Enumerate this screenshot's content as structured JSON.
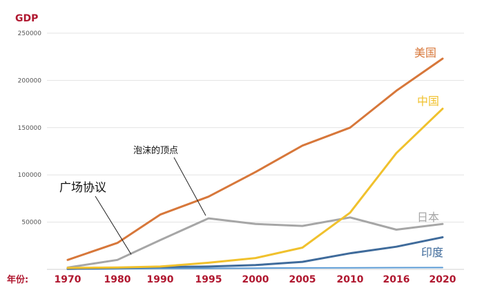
{
  "chart_data": {
    "type": "line",
    "ylabel": "GDP",
    "xlabel": "年份:",
    "ylim": [
      0,
      250000
    ],
    "yticks": [
      "250000",
      "200000",
      "150000",
      "100000",
      "50000"
    ],
    "categories": [
      "1970",
      "1980",
      "1990",
      "1995",
      "2000",
      "2005",
      "2010",
      "2016",
      "2020"
    ],
    "grid": true,
    "series": [
      {
        "name": "美国",
        "color": "#d7773a",
        "values": [
          10000,
          28000,
          58000,
          77000,
          103000,
          131000,
          150000,
          189000,
          223000
        ]
      },
      {
        "name": "中国",
        "color": "#f0c12d",
        "values": [
          1500,
          2000,
          3000,
          7000,
          12000,
          23000,
          60000,
          123000,
          170000
        ]
      },
      {
        "name": "日本",
        "color": "#a6a6a6",
        "values": [
          2000,
          10000,
          31000,
          54000,
          48000,
          46000,
          55000,
          42000,
          48000
        ]
      },
      {
        "name": "印度",
        "color": "#3f6b9b",
        "values": [
          500,
          1500,
          2500,
          3000,
          4500,
          8000,
          17000,
          24000,
          34000
        ]
      },
      {
        "name": "",
        "color": "#5b9bd5",
        "values": [
          300,
          600,
          900,
          1100,
          1300,
          1500,
          1700,
          1800,
          1900
        ]
      }
    ],
    "annotations": [
      {
        "text": "广场协议",
        "category": "1980",
        "value": 10000
      },
      {
        "text": "泡沫的顶点",
        "category": "1995",
        "value": 54000
      }
    ]
  }
}
